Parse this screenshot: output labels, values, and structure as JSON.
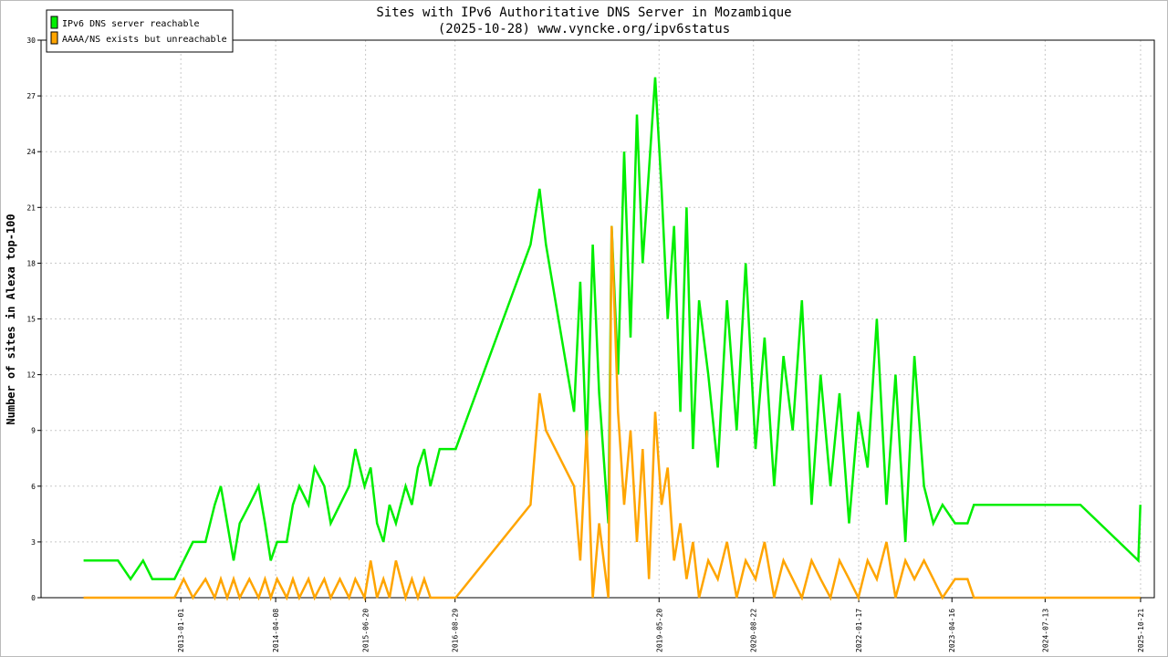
{
  "chart_data": {
    "type": "line",
    "title": "Sites with IPv6 Authoritative DNS Server in Mozambique",
    "subtitle": "(2025-10-28) www.vyncke.org/ipv6status",
    "y_label": "Number of sites in Alexa top-100",
    "xlim": [
      "2011-02-20",
      "2025-12-27"
    ],
    "xticks": [
      "2013-01-01",
      "2014-04-08",
      "2015-06-20",
      "2016-08-29",
      "2019-05-20",
      "2020-08-22",
      "2022-01-17",
      "2023-04-16",
      "2024-07-13",
      "2025-10-21"
    ],
    "ylim": [
      0,
      30
    ],
    "yticks": [
      0,
      3,
      6,
      9,
      12,
      15,
      18,
      21,
      24,
      27,
      30
    ],
    "grid": true,
    "legend": "upper left",
    "x": [
      "2011-09-15",
      "2012-03-01",
      "2012-05-01",
      "2012-07-01",
      "2012-08-15",
      "2012-12-01",
      "2013-01-15",
      "2013-03-01",
      "2013-05-01",
      "2013-06-15",
      "2013-07-15",
      "2013-08-15",
      "2013-09-15",
      "2013-10-15",
      "2013-12-01",
      "2014-01-15",
      "2014-02-15",
      "2014-03-15",
      "2014-04-15",
      "2014-06-01",
      "2014-07-01",
      "2014-08-01",
      "2014-09-15",
      "2014-10-15",
      "2014-12-01",
      "2015-01-01",
      "2015-02-15",
      "2015-04-01",
      "2015-05-01",
      "2015-06-15",
      "2015-07-15",
      "2015-08-15",
      "2015-09-15",
      "2015-10-15",
      "2015-11-15",
      "2016-01-01",
      "2016-02-01",
      "2016-03-01",
      "2016-04-01",
      "2016-05-01",
      "2016-06-15",
      "2016-09-01",
      "2017-09-01",
      "2017-10-15",
      "2017-11-15",
      "2018-04-01",
      "2018-05-01",
      "2018-06-01",
      "2018-07-01",
      "2018-08-01",
      "2018-09-15",
      "2018-10-01",
      "2018-11-01",
      "2018-12-01",
      "2019-01-01",
      "2019-02-01",
      "2019-03-01",
      "2019-04-01",
      "2019-05-01",
      "2019-06-01",
      "2019-07-01",
      "2019-08-01",
      "2019-09-01",
      "2019-10-01",
      "2019-11-01",
      "2019-12-01",
      "2020-01-15",
      "2020-03-01",
      "2020-04-15",
      "2020-06-01",
      "2020-07-15",
      "2020-09-01",
      "2020-10-15",
      "2020-12-01",
      "2021-01-15",
      "2021-03-01",
      "2021-04-15",
      "2021-06-01",
      "2021-07-15",
      "2021-09-01",
      "2021-10-15",
      "2021-12-01",
      "2022-01-15",
      "2022-03-01",
      "2022-04-15",
      "2022-06-01",
      "2022-07-15",
      "2022-09-01",
      "2022-10-15",
      "2022-12-01",
      "2023-01-15",
      "2023-03-01",
      "2023-05-01",
      "2023-07-01",
      "2023-08-01",
      "2024-01-01",
      "2024-06-01",
      "2025-01-01",
      "2025-10-10",
      "2025-10-20"
    ],
    "series": [
      {
        "name": "IPv6 DNS server reachable",
        "color": "#00ee00",
        "values": [
          2,
          2,
          1,
          2,
          1,
          1,
          2,
          3,
          3,
          5,
          6,
          4,
          2,
          4,
          5,
          6,
          4,
          2,
          3,
          3,
          5,
          6,
          5,
          7,
          6,
          4,
          5,
          6,
          8,
          6,
          7,
          4,
          3,
          5,
          4,
          6,
          5,
          7,
          8,
          6,
          8,
          8,
          19,
          22,
          19,
          10,
          17,
          8,
          19,
          11,
          4,
          20,
          12,
          24,
          14,
          26,
          18,
          23,
          28,
          22,
          15,
          20,
          10,
          21,
          8,
          16,
          12,
          7,
          16,
          9,
          18,
          8,
          14,
          6,
          13,
          9,
          16,
          5,
          12,
          6,
          11,
          4,
          10,
          7,
          15,
          5,
          12,
          3,
          13,
          6,
          4,
          5,
          4,
          4,
          5,
          5,
          5,
          5,
          2,
          5
        ]
      },
      {
        "name": "AAAA/NS exists but unreachable",
        "color": "#ffa500",
        "values": [
          0,
          0,
          0,
          0,
          0,
          0,
          1,
          0,
          1,
          0,
          1,
          0,
          1,
          0,
          1,
          0,
          1,
          0,
          1,
          0,
          1,
          0,
          1,
          0,
          1,
          0,
          1,
          0,
          1,
          0,
          2,
          0,
          1,
          0,
          2,
          0,
          1,
          0,
          1,
          0,
          0,
          0,
          5,
          11,
          9,
          6,
          2,
          9,
          0,
          4,
          0,
          20,
          10,
          5,
          9,
          3,
          8,
          1,
          10,
          5,
          7,
          2,
          4,
          1,
          3,
          0,
          2,
          1,
          3,
          0,
          2,
          1,
          3,
          0,
          2,
          1,
          0,
          2,
          1,
          0,
          2,
          1,
          0,
          2,
          1,
          3,
          0,
          2,
          1,
          2,
          1,
          0,
          1,
          1,
          0,
          0,
          0,
          0,
          0,
          0
        ]
      }
    ]
  }
}
